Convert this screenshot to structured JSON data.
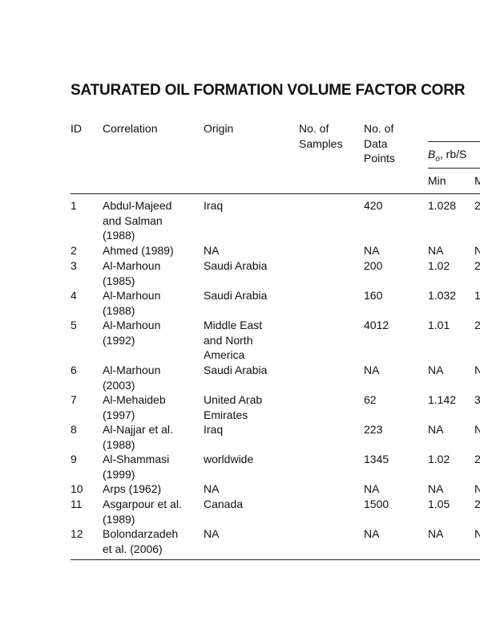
{
  "title": "SATURATED OIL FORMATION VOLUME FACTOR CORR",
  "table": {
    "headers": [
      "ID",
      "Correlation",
      "Origin",
      "No. of Samples",
      "No. of Data Points"
    ],
    "group_header": {
      "symbol": "B",
      "subscript": "o",
      "unit": ", rb/S"
    },
    "subheaders": [
      "Min",
      "M"
    ],
    "rows": [
      [
        "1",
        "Abdul-Majeed and Salman (1988)",
        "Iraq",
        "",
        "420",
        "1.028",
        "2"
      ],
      [
        "2",
        "Ahmed (1989)",
        "NA",
        "",
        "NA",
        "NA",
        "N"
      ],
      [
        "3",
        "Al-Marhoun (1985)",
        "Saudi Arabia",
        "",
        "200",
        "1.02",
        "2"
      ],
      [
        "4",
        "Al-Marhoun (1988)",
        "Saudi Arabia",
        "",
        "160",
        "1.032",
        "1"
      ],
      [
        "5",
        "Al-Marhoun (1992)",
        "Middle East and North America",
        "",
        "4012",
        "1.01",
        "2"
      ],
      [
        "6",
        "Al-Marhoun (2003)",
        "Saudi Arabia",
        "",
        "NA",
        "NA",
        "N"
      ],
      [
        "7",
        "Al-Mehaideb (1997)",
        "United Arab Emirates",
        "",
        "62",
        "1.142",
        "3"
      ],
      [
        "8",
        "Al-Najjar et al. (1988)",
        "Iraq",
        "",
        "223",
        "NA",
        "N"
      ],
      [
        "9",
        "Al-Shammasi (1999)",
        "worldwide",
        "",
        "1345",
        "1.02",
        "2"
      ],
      [
        "10",
        "Arps (1962)",
        "NA",
        "",
        "NA",
        "NA",
        "N"
      ],
      [
        "11",
        "Asgarpour et al. (1989)",
        "Canada",
        "",
        "1500",
        "1.05",
        "2"
      ],
      [
        "12",
        "Bolondarzadeh et al. (2006)",
        "NA",
        "",
        "NA",
        "NA",
        "N"
      ]
    ]
  }
}
